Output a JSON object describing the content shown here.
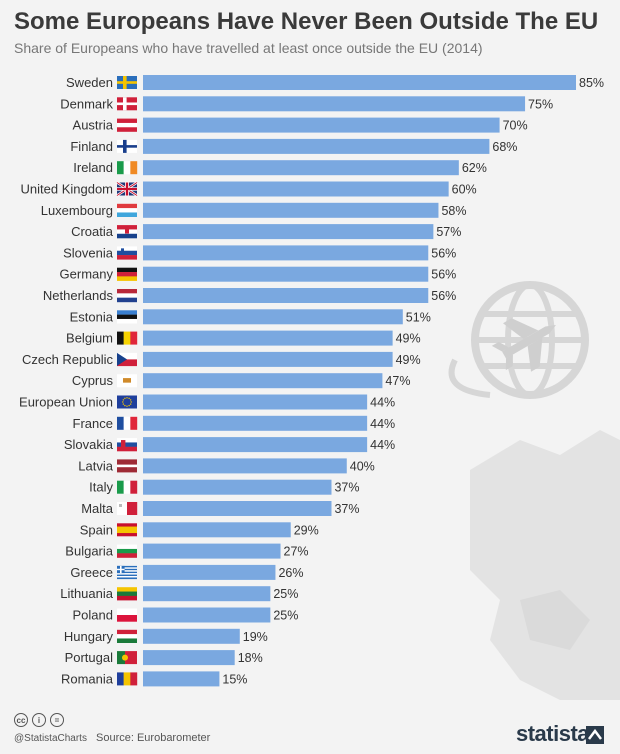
{
  "title": "Some Europeans Have Never Been Outside The EU",
  "subtitle": "Share of Europeans who have travelled at least once outside the EU (2014)",
  "footer": {
    "handle": "@StatistaCharts",
    "source": "Source: Eurobarometer",
    "brand": "statista"
  },
  "colors": {
    "bar": "#7aa8e0",
    "background": "#f3f3f3",
    "title": "#3a3a3a",
    "subtitle": "#777777",
    "label": "#333333"
  },
  "icons": [
    "cc-icon",
    "attribution-icon",
    "noderivs-icon",
    "globe-plane-icon",
    "statista-logo-icon"
  ],
  "chart_data": {
    "type": "bar",
    "orientation": "horizontal",
    "categories": [
      "Sweden",
      "Denmark",
      "Austria",
      "Finland",
      "Ireland",
      "United Kingdom",
      "Luxembourg",
      "Croatia",
      "Slovenia",
      "Germany",
      "Netherlands",
      "Estonia",
      "Belgium",
      "Czech Republic",
      "Cyprus",
      "European Union",
      "France",
      "Slovakia",
      "Latvia",
      "Italy",
      "Malta",
      "Spain",
      "Bulgaria",
      "Greece",
      "Lithuania",
      "Poland",
      "Hungary",
      "Portugal",
      "Romania"
    ],
    "values": [
      85,
      75,
      70,
      68,
      62,
      60,
      58,
      57,
      56,
      56,
      56,
      51,
      49,
      49,
      47,
      44,
      44,
      44,
      40,
      37,
      37,
      29,
      27,
      26,
      25,
      25,
      19,
      18,
      15
    ],
    "value_labels": [
      "85%",
      "75%",
      "70%",
      "68%",
      "62%",
      "60%",
      "58%",
      "57%",
      "56%",
      "56%",
      "56%",
      "51%",
      "49%",
      "49%",
      "47%",
      "44%",
      "44%",
      "44%",
      "40%",
      "37%",
      "37%",
      "29%",
      "27%",
      "26%",
      "25%",
      "25%",
      "19%",
      "18%",
      "15%"
    ],
    "flags": [
      "sweden-flag-icon",
      "denmark-flag-icon",
      "austria-flag-icon",
      "finland-flag-icon",
      "ireland-flag-icon",
      "united-kingdom-flag-icon",
      "luxembourg-flag-icon",
      "croatia-flag-icon",
      "slovenia-flag-icon",
      "germany-flag-icon",
      "netherlands-flag-icon",
      "estonia-flag-icon",
      "belgium-flag-icon",
      "czech-republic-flag-icon",
      "cyprus-flag-icon",
      "european-union-flag-icon",
      "france-flag-icon",
      "slovakia-flag-icon",
      "latvia-flag-icon",
      "italy-flag-icon",
      "malta-flag-icon",
      "spain-flag-icon",
      "bulgaria-flag-icon",
      "greece-flag-icon",
      "lithuania-flag-icon",
      "poland-flag-icon",
      "hungary-flag-icon",
      "portugal-flag-icon",
      "romania-flag-icon"
    ],
    "xlim": [
      0,
      100
    ],
    "grid": false,
    "legend": "none"
  }
}
